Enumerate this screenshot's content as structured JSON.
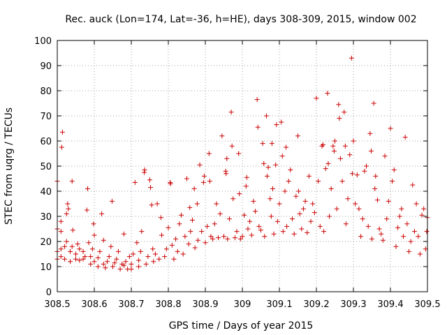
{
  "chart_data": {
    "type": "scatter",
    "title": "Rec. auck (Lon=174, Lat=-36, h=HE), days 308-309, 2015, window 002",
    "xlabel": "GPS time / Days of year 2015",
    "ylabel": "STEC from uqrg / TECUs",
    "xlim": [
      308.5,
      309.5
    ],
    "ylim": [
      0,
      100
    ],
    "grid": true,
    "marker": "plus",
    "color": "#cc0000",
    "x_ticks": [
      308.5,
      308.6,
      308.7,
      308.8,
      308.9,
      309,
      309.1,
      309.2,
      309.3,
      309.4,
      309.5
    ],
    "x_tick_labels": [
      "308.5",
      "308.6",
      "308.7",
      "308.8",
      "308.9",
      "309",
      "309.1",
      "309.2",
      "309.3",
      "309.4",
      "309.5"
    ],
    "y_ticks": [
      0,
      10,
      20,
      30,
      40,
      50,
      60,
      70,
      80,
      90,
      100
    ],
    "y_tick_labels": [
      "0",
      "10",
      "20",
      "30",
      "40",
      "50",
      "60",
      "70",
      "80",
      "90",
      "100"
    ],
    "series": [
      {
        "name": "STEC",
        "points": [
          [
            308.5,
            13
          ],
          [
            308.5,
            16
          ],
          [
            308.5,
            25
          ],
          [
            308.5,
            44
          ],
          [
            308.51,
            14
          ],
          [
            308.51,
            17
          ],
          [
            308.51,
            24
          ],
          [
            308.51,
            28
          ],
          [
            308.512,
            57.5
          ],
          [
            308.514,
            63.5
          ],
          [
            308.52,
            13
          ],
          [
            308.52,
            18
          ],
          [
            308.525,
            20
          ],
          [
            308.525,
            31
          ],
          [
            308.528,
            35
          ],
          [
            308.53,
            33
          ],
          [
            308.535,
            12
          ],
          [
            308.535,
            16
          ],
          [
            308.54,
            18
          ],
          [
            308.54,
            44
          ],
          [
            308.542,
            24.5
          ],
          [
            308.55,
            13
          ],
          [
            308.55,
            15
          ],
          [
            308.555,
            19
          ],
          [
            308.56,
            12.5
          ],
          [
            308.56,
            17
          ],
          [
            308.57,
            13
          ],
          [
            308.57,
            16
          ],
          [
            308.575,
            14
          ],
          [
            308.58,
            32.5
          ],
          [
            308.582,
            41
          ],
          [
            308.585,
            19.5
          ],
          [
            308.59,
            11
          ],
          [
            308.59,
            14
          ],
          [
            308.595,
            17
          ],
          [
            308.598,
            27
          ],
          [
            308.6,
            22.5
          ],
          [
            308.6,
            12
          ],
          [
            308.61,
            10
          ],
          [
            308.61,
            13.5
          ],
          [
            308.615,
            16
          ],
          [
            308.62,
            31
          ],
          [
            308.625,
            20.5
          ],
          [
            308.625,
            11
          ],
          [
            308.63,
            9.5
          ],
          [
            308.635,
            12
          ],
          [
            308.64,
            14
          ],
          [
            308.645,
            18
          ],
          [
            308.648,
            36
          ],
          [
            308.65,
            10
          ],
          [
            308.655,
            11.5
          ],
          [
            308.66,
            13
          ],
          [
            308.665,
            16
          ],
          [
            308.67,
            9
          ],
          [
            308.675,
            11
          ],
          [
            308.68,
            10.5
          ],
          [
            308.68,
            23
          ],
          [
            308.685,
            12
          ],
          [
            308.69,
            9
          ],
          [
            308.695,
            14
          ],
          [
            308.7,
            9
          ],
          [
            308.7,
            11
          ],
          [
            308.705,
            15
          ],
          [
            308.71,
            43.5
          ],
          [
            308.715,
            19.5
          ],
          [
            308.72,
            10
          ],
          [
            308.72,
            12.5
          ],
          [
            308.725,
            16
          ],
          [
            308.728,
            24
          ],
          [
            308.735,
            47.5
          ],
          [
            308.736,
            48.5
          ],
          [
            308.74,
            11
          ],
          [
            308.745,
            14
          ],
          [
            308.75,
            44.5
          ],
          [
            308.752,
            41.5
          ],
          [
            308.755,
            34.5
          ],
          [
            308.758,
            17
          ],
          [
            308.76,
            12
          ],
          [
            308.765,
            15
          ],
          [
            308.77,
            35
          ],
          [
            308.775,
            13
          ],
          [
            308.78,
            29.5
          ],
          [
            308.782,
            22.5
          ],
          [
            308.79,
            14
          ],
          [
            308.795,
            17
          ],
          [
            308.8,
            25.5
          ],
          [
            308.805,
            43.5
          ],
          [
            308.806,
            43
          ],
          [
            308.81,
            18.5
          ],
          [
            308.815,
            13
          ],
          [
            308.82,
            21
          ],
          [
            308.825,
            16
          ],
          [
            308.83,
            27
          ],
          [
            308.835,
            30.5
          ],
          [
            308.84,
            15
          ],
          [
            308.845,
            22
          ],
          [
            308.85,
            45
          ],
          [
            308.855,
            19
          ],
          [
            308.858,
            33.5
          ],
          [
            308.86,
            24
          ],
          [
            308.865,
            28.5
          ],
          [
            308.87,
            41
          ],
          [
            308.872,
            17.5
          ],
          [
            308.878,
            35
          ],
          [
            308.88,
            20.5
          ],
          [
            308.885,
            50.5
          ],
          [
            308.89,
            24
          ],
          [
            308.895,
            43.5
          ],
          [
            308.897,
            46
          ],
          [
            308.9,
            19.5
          ],
          [
            308.905,
            26
          ],
          [
            308.91,
            55
          ],
          [
            308.912,
            44
          ],
          [
            308.915,
            22
          ],
          [
            308.92,
            21
          ],
          [
            308.925,
            27
          ],
          [
            308.93,
            35
          ],
          [
            308.935,
            21.5
          ],
          [
            308.94,
            31
          ],
          [
            308.945,
            62
          ],
          [
            308.95,
            22
          ],
          [
            308.955,
            48
          ],
          [
            308.956,
            47
          ],
          [
            308.958,
            53
          ],
          [
            308.96,
            21
          ],
          [
            308.965,
            29
          ],
          [
            308.97,
            71.5
          ],
          [
            308.972,
            58
          ],
          [
            308.975,
            37
          ],
          [
            308.98,
            21.5
          ],
          [
            308.985,
            24
          ],
          [
            308.99,
            55
          ],
          [
            308.992,
            39
          ],
          [
            308.995,
            21
          ],
          [
            309.0,
            22
          ],
          [
            309.005,
            30.5
          ],
          [
            309.01,
            42
          ],
          [
            309.012,
            45.5
          ],
          [
            309.015,
            25
          ],
          [
            309.02,
            28
          ],
          [
            309.025,
            22.5
          ],
          [
            309.03,
            36
          ],
          [
            309.035,
            32
          ],
          [
            309.04,
            76.5
          ],
          [
            309.042,
            65.5
          ],
          [
            309.045,
            26
          ],
          [
            309.05,
            24.5
          ],
          [
            309.055,
            59
          ],
          [
            309.058,
            51
          ],
          [
            309.06,
            22
          ],
          [
            309.065,
            70
          ],
          [
            309.067,
            46
          ],
          [
            309.07,
            49.5
          ],
          [
            309.075,
            37
          ],
          [
            309.078,
            30
          ],
          [
            309.08,
            59
          ],
          [
            309.082,
            41
          ],
          [
            309.085,
            23
          ],
          [
            309.09,
            50.5
          ],
          [
            309.092,
            66.5
          ],
          [
            309.095,
            28
          ],
          [
            309.1,
            35
          ],
          [
            309.105,
            67.5
          ],
          [
            309.108,
            54
          ],
          [
            309.11,
            24
          ],
          [
            309.115,
            40
          ],
          [
            309.118,
            57.5
          ],
          [
            309.12,
            26
          ],
          [
            309.125,
            44
          ],
          [
            309.13,
            48.5
          ],
          [
            309.135,
            29
          ],
          [
            309.14,
            23
          ],
          [
            309.145,
            38
          ],
          [
            309.15,
            62
          ],
          [
            309.152,
            40
          ],
          [
            309.155,
            31
          ],
          [
            309.16,
            25
          ],
          [
            309.165,
            33
          ],
          [
            309.17,
            36
          ],
          [
            309.175,
            23.5
          ],
          [
            309.18,
            46
          ],
          [
            309.185,
            28
          ],
          [
            309.19,
            35
          ],
          [
            309.195,
            31.5
          ],
          [
            309.2,
            77
          ],
          [
            309.205,
            44
          ],
          [
            309.21,
            26
          ],
          [
            309.215,
            58
          ],
          [
            309.218,
            58.5
          ],
          [
            309.22,
            24
          ],
          [
            309.225,
            49
          ],
          [
            309.23,
            79
          ],
          [
            309.232,
            51
          ],
          [
            309.235,
            30
          ],
          [
            309.24,
            41
          ],
          [
            309.245,
            58
          ],
          [
            309.248,
            56
          ],
          [
            309.25,
            60
          ],
          [
            309.255,
            33
          ],
          [
            309.26,
            74.5
          ],
          [
            309.262,
            69
          ],
          [
            309.265,
            53
          ],
          [
            309.27,
            44
          ],
          [
            309.275,
            71.5
          ],
          [
            309.278,
            58
          ],
          [
            309.28,
            27
          ],
          [
            309.285,
            37
          ],
          [
            309.29,
            54.5
          ],
          [
            309.295,
            93
          ],
          [
            309.297,
            47
          ],
          [
            309.3,
            60
          ],
          [
            309.305,
            35
          ],
          [
            309.31,
            46.5
          ],
          [
            309.315,
            33
          ],
          [
            309.32,
            22
          ],
          [
            309.325,
            29
          ],
          [
            309.33,
            48
          ],
          [
            309.335,
            50
          ],
          [
            309.34,
            26
          ],
          [
            309.345,
            63
          ],
          [
            309.348,
            56
          ],
          [
            309.35,
            21
          ],
          [
            309.355,
            75
          ],
          [
            309.358,
            41
          ],
          [
            309.36,
            46
          ],
          [
            309.365,
            36.5
          ],
          [
            309.37,
            25
          ],
          [
            309.375,
            23
          ],
          [
            309.38,
            20.5
          ],
          [
            309.385,
            54
          ],
          [
            309.39,
            29
          ],
          [
            309.395,
            36
          ],
          [
            309.4,
            65
          ],
          [
            309.405,
            44
          ],
          [
            309.41,
            48.5
          ],
          [
            309.415,
            18
          ],
          [
            309.42,
            25.5
          ],
          [
            309.425,
            30
          ],
          [
            309.43,
            33
          ],
          [
            309.435,
            22
          ],
          [
            309.44,
            61.5
          ],
          [
            309.445,
            27
          ],
          [
            309.45,
            16
          ],
          [
            309.455,
            20
          ],
          [
            309.46,
            42.5
          ],
          [
            309.465,
            24
          ],
          [
            309.47,
            35
          ],
          [
            309.475,
            22
          ],
          [
            309.48,
            15
          ],
          [
            309.485,
            30.5
          ],
          [
            309.49,
            33
          ],
          [
            309.495,
            17
          ],
          [
            309.498,
            24
          ],
          [
            309.5,
            29.5
          ]
        ]
      }
    ]
  }
}
